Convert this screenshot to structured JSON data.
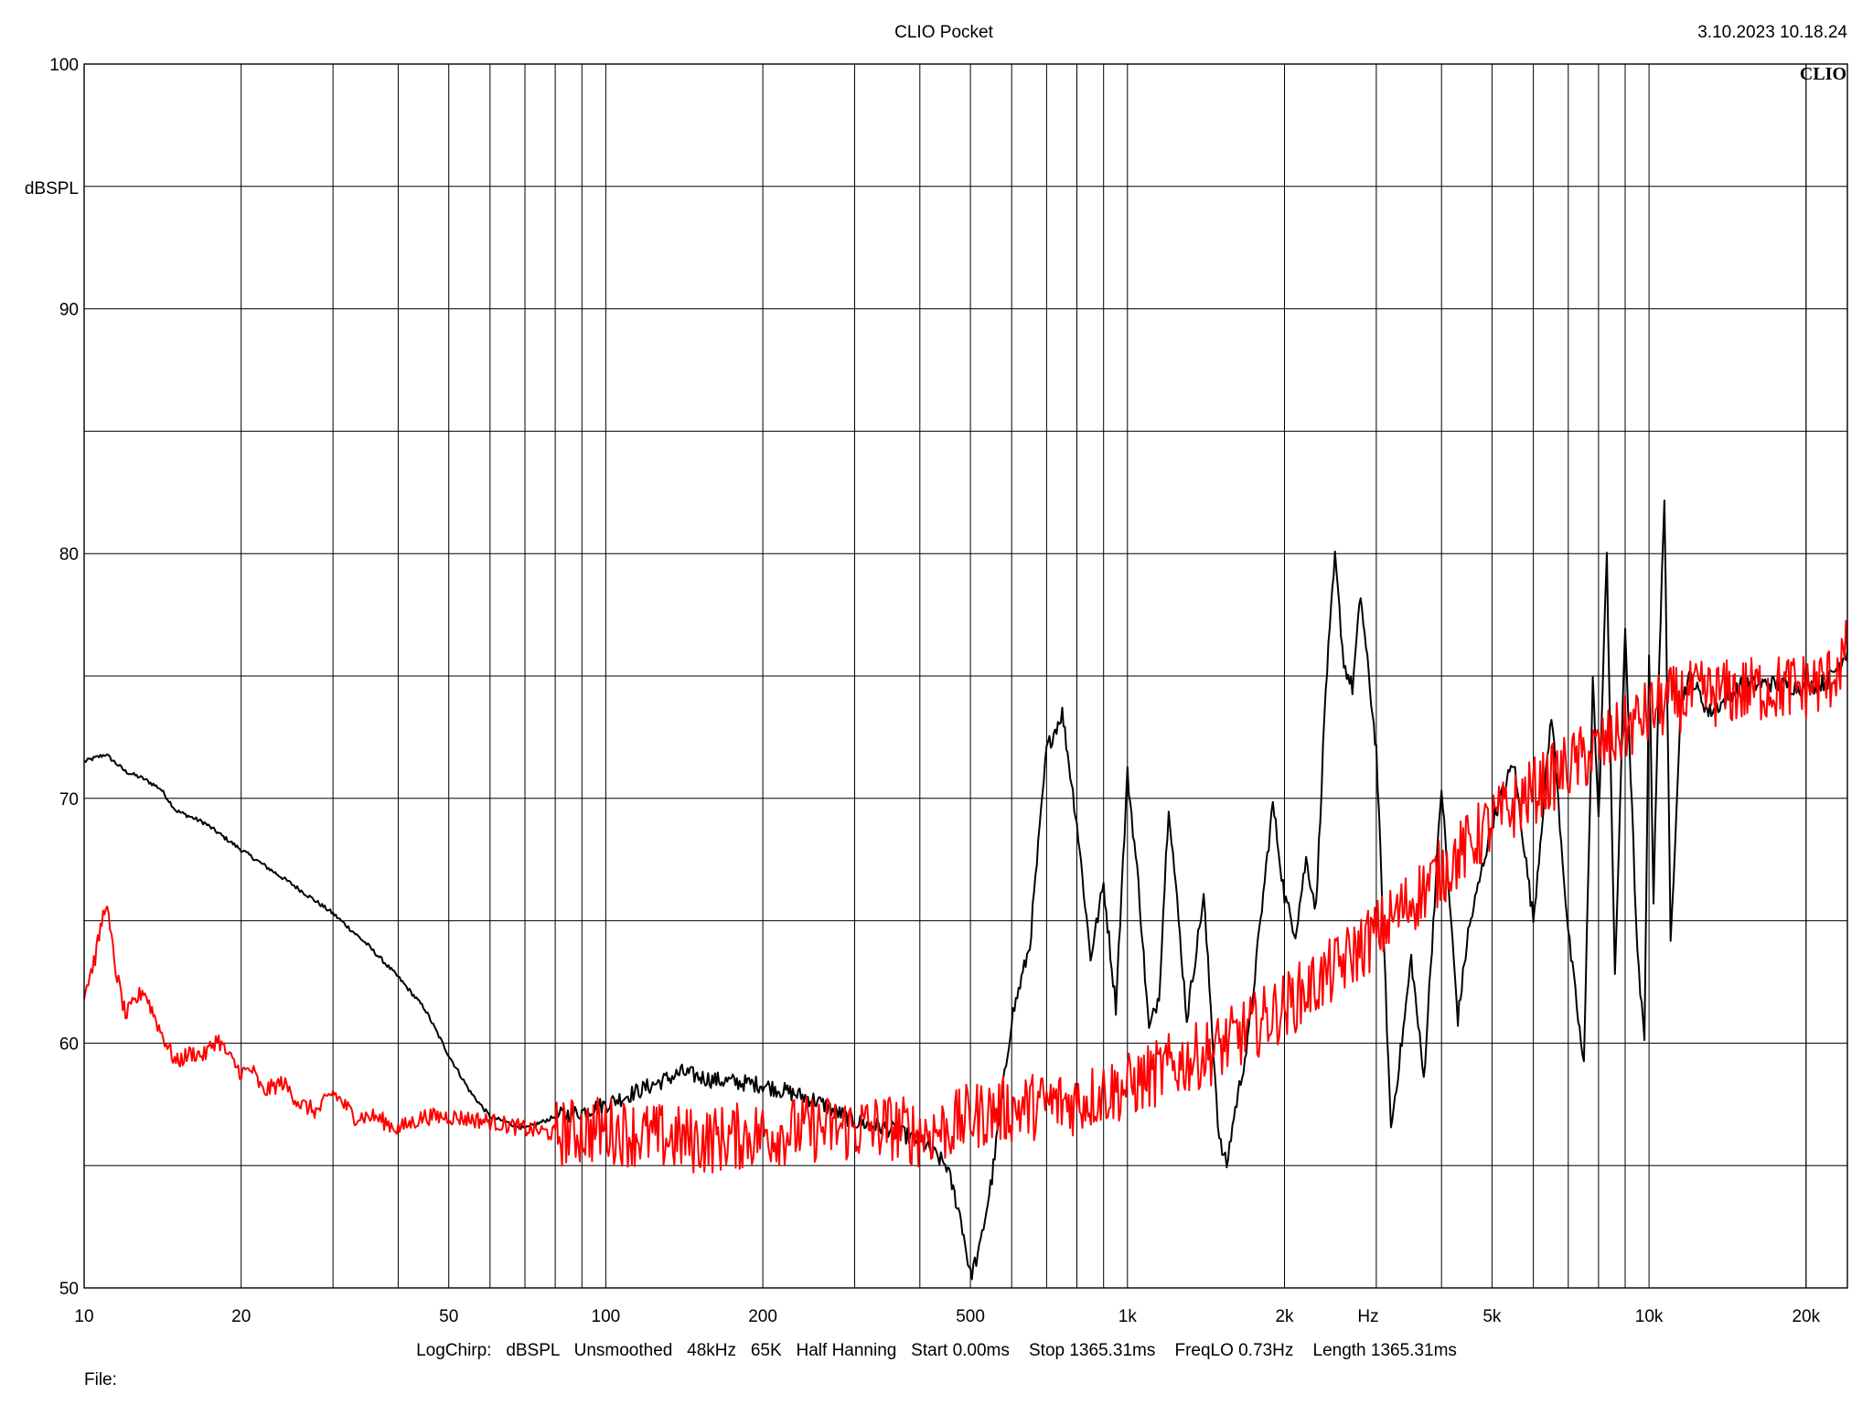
{
  "chart_data": {
    "type": "line",
    "title": "CLIO Pocket",
    "timestamp": "3.10.2023 10.18.24",
    "logo": "CLIO",
    "ylabel": "dBSPL",
    "xunit": "Hz",
    "xscale": "log",
    "xlim": [
      10,
      24000
    ],
    "ylim": [
      50,
      100
    ],
    "grid": true,
    "x_ticks": [
      {
        "value": 10,
        "label": "10"
      },
      {
        "value": 20,
        "label": "20"
      },
      {
        "value": 50,
        "label": "50"
      },
      {
        "value": 100,
        "label": "100"
      },
      {
        "value": 200,
        "label": "200"
      },
      {
        "value": 500,
        "label": "500"
      },
      {
        "value": 1000,
        "label": "1k"
      },
      {
        "value": 2000,
        "label": "2k"
      },
      {
        "value": 5000,
        "label": "5k"
      },
      {
        "value": 10000,
        "label": "10k"
      },
      {
        "value": 20000,
        "label": "20k"
      }
    ],
    "y_ticks": [
      {
        "value": 50,
        "label": "50"
      },
      {
        "value": 60,
        "label": "60"
      },
      {
        "value": 70,
        "label": "70"
      },
      {
        "value": 80,
        "label": "80"
      },
      {
        "value": 90,
        "label": "90"
      },
      {
        "value": 100,
        "label": "100"
      }
    ],
    "series": [
      {
        "color": "#000000",
        "x": [
          10,
          11,
          12,
          13,
          14,
          15,
          17,
          20,
          25,
          30,
          35,
          40,
          45,
          50,
          55,
          60,
          70,
          80,
          90,
          100,
          120,
          140,
          160,
          200,
          250,
          300,
          350,
          400,
          450,
          480,
          500,
          520,
          550,
          600,
          650,
          700,
          750,
          800,
          850,
          900,
          950,
          1000,
          1050,
          1100,
          1150,
          1200,
          1300,
          1400,
          1500,
          1550,
          1600,
          1700,
          1800,
          1900,
          2000,
          2100,
          2200,
          2300,
          2400,
          2500,
          2600,
          2700,
          2800,
          2900,
          3000,
          3200,
          3400,
          3500,
          3700,
          4000,
          4300,
          4500,
          5000,
          5500,
          6000,
          6500,
          7000,
          7500,
          7800,
          8000,
          8300,
          8600,
          9000,
          9500,
          9800,
          10000,
          10200,
          10400,
          10700,
          11000,
          11500,
          12000,
          13000,
          14000,
          15000,
          17000,
          20000,
          22000,
          24000
        ],
        "y": [
          71.5,
          71.8,
          71.1,
          70.8,
          70.4,
          69.5,
          69.0,
          67.9,
          66.5,
          65.3,
          64.0,
          62.7,
          61.4,
          59.5,
          58.0,
          57.0,
          56.5,
          57.0,
          57.2,
          57.5,
          58.2,
          58.8,
          58.5,
          58.3,
          57.7,
          56.8,
          56.5,
          56.0,
          55.0,
          52.8,
          50.5,
          51.5,
          54.5,
          61.0,
          64.0,
          72.0,
          73.5,
          69.0,
          63.5,
          66.5,
          61.5,
          71.0,
          66.5,
          60.5,
          62.0,
          69.8,
          61.0,
          66.0,
          56.0,
          55.0,
          57.0,
          60.0,
          65.0,
          69.8,
          66.0,
          64.5,
          67.5,
          65.5,
          74.5,
          79.8,
          75.5,
          74.5,
          78.3,
          75.0,
          72.0,
          56.5,
          61.0,
          63.5,
          58.5,
          70.5,
          61.0,
          64.5,
          69.0,
          71.5,
          65.0,
          73.5,
          64.5,
          59.0,
          75.0,
          69.0,
          80.0,
          62.5,
          77.0,
          63.5,
          60.0,
          76.0,
          66.0,
          73.5,
          82.5,
          64.0,
          74.0,
          75.0,
          73.5,
          74.0,
          74.6,
          74.7,
          74.5,
          74.8,
          76.0
        ]
      },
      {
        "color": "#ff0000",
        "x": [
          10,
          10.5,
          11,
          11.5,
          12,
          13,
          14,
          15,
          16,
          17,
          18,
          19,
          20,
          21,
          22,
          24,
          26,
          28,
          30,
          33,
          36,
          40,
          45,
          50,
          60,
          70,
          80,
          100,
          120,
          150,
          200,
          250,
          300,
          350,
          400,
          450,
          500,
          550,
          600,
          700,
          800,
          900,
          1000,
          1200,
          1500,
          2000,
          2500,
          3000,
          3500,
          4000,
          5000,
          6000,
          7000,
          8000,
          9000,
          10000,
          11000,
          12000,
          14000,
          17000,
          20000,
          22000,
          24000
        ],
        "y": [
          62.0,
          63.5,
          65.8,
          63.0,
          61.1,
          62.2,
          60.5,
          59.2,
          59.6,
          59.5,
          60.2,
          59.4,
          58.8,
          58.9,
          58.0,
          58.4,
          57.5,
          57.2,
          58.0,
          57.0,
          57.0,
          56.5,
          57.0,
          57.0,
          56.8,
          56.5,
          56.3,
          56.5,
          56.2,
          56.0,
          56.3,
          56.5,
          56.5,
          56.6,
          56.3,
          56.5,
          57.0,
          57.2,
          57.3,
          57.5,
          57.6,
          58.0,
          58.2,
          59.0,
          59.8,
          61.5,
          63.0,
          64.5,
          65.8,
          67.0,
          69.0,
          70.3,
          71.3,
          72.0,
          72.8,
          73.5,
          74.0,
          74.2,
          74.3,
          74.5,
          74.6,
          74.8,
          76.0
        ]
      }
    ]
  },
  "footer": {
    "measurement_info": "LogChirp:   dBSPL   Unsmoothed   48kHz   65K   Half Hanning   Start 0.00ms    Stop 1365.31ms    FreqLO 0.73Hz    Length 1365.31ms",
    "file_label": "File:"
  }
}
